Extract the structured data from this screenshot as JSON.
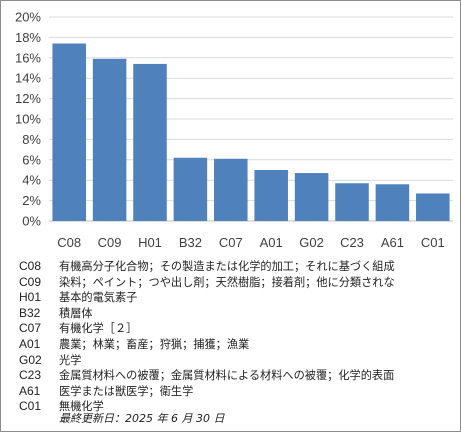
{
  "chart_data": {
    "type": "bar",
    "categories": [
      "C08",
      "C09",
      "H01",
      "B32",
      "C07",
      "A01",
      "G02",
      "C23",
      "A61",
      "C01"
    ],
    "values": [
      17.4,
      15.9,
      15.4,
      6.2,
      6.1,
      5.0,
      4.7,
      3.7,
      3.6,
      2.7
    ],
    "ylim": [
      0,
      20
    ],
    "yticks": [
      "0%",
      "2%",
      "4%",
      "6%",
      "8%",
      "10%",
      "12%",
      "14%",
      "16%",
      "18%",
      "20%"
    ],
    "grid": true,
    "bar_color": "#4f81bd"
  },
  "legend": [
    {
      "code": "C08",
      "desc": "有機高分子化合物；その製造または化学的加工；それに基づく組成"
    },
    {
      "code": "C09",
      "desc": "染料；ペイント；つや出し剤；天然樹脂；接着剤；他に分類されな"
    },
    {
      "code": "H01",
      "desc": "基本的電気素子"
    },
    {
      "code": "B32",
      "desc": "積層体"
    },
    {
      "code": "C07",
      "desc": "有機化学［２］"
    },
    {
      "code": "A01",
      "desc": "農業；林業；畜産；狩猟；捕獲；漁業"
    },
    {
      "code": "G02",
      "desc": "光学"
    },
    {
      "code": "C23",
      "desc": "金属質材料への被覆；金属質材料による材料への被覆；化学的表面"
    },
    {
      "code": "A61",
      "desc": "医学または獣医学；衛生学"
    },
    {
      "code": "C01",
      "desc": "無機化学"
    }
  ],
  "updated": "最終更新日：2025 年 6 月 30 日"
}
